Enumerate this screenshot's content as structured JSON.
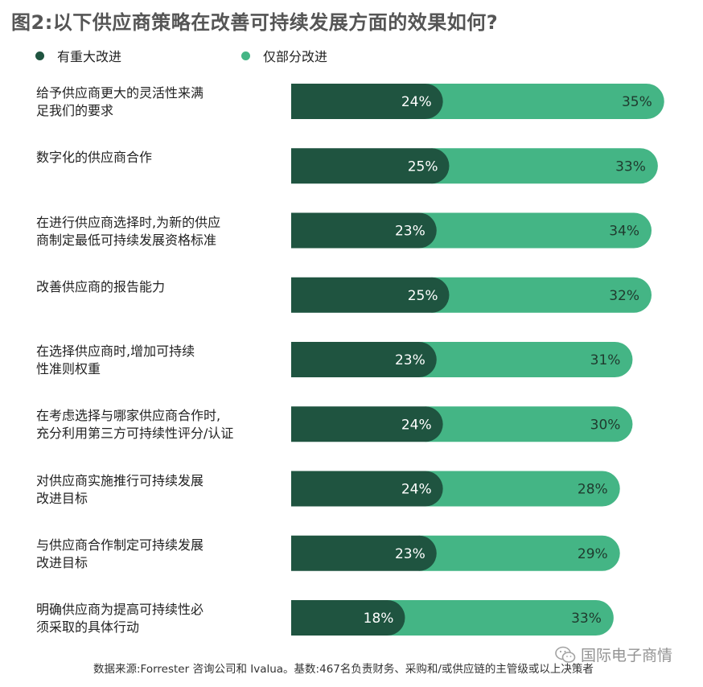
{
  "chart_data": {
    "type": "bar",
    "stacked": true,
    "orientation": "horizontal",
    "title": "图2:以下供应商策略在改善可持续发展方面的效果如何?",
    "categories": [
      [
        "给予供应商更大的灵活性来满",
        "足我们的要求"
      ],
      [
        "数字化的供应商合作"
      ],
      [
        "在进行供应商选择时,为新的供应",
        "商制定最低可持续发展资格标准"
      ],
      [
        "改善供应商的报告能力"
      ],
      [
        "在选择供应商时,增加可持续",
        "性准则权重"
      ],
      [
        "在考虑选择与哪家供应商合作时,",
        "充分利用第三方可持续性评分/认证"
      ],
      [
        "对供应商实施推行可持续发展",
        "改进目标"
      ],
      [
        "与供应商合作制定可持续发展",
        "改进目标"
      ],
      [
        "明确供应商为提高可持续性必",
        "须采取的具体行动"
      ]
    ],
    "series": [
      {
        "name": "有重大改进",
        "color": "#1f5440",
        "values": [
          24,
          25,
          23,
          25,
          23,
          24,
          24,
          23,
          18
        ]
      },
      {
        "name": "仅部分改进",
        "color": "#44b585",
        "values": [
          35,
          33,
          34,
          32,
          31,
          30,
          28,
          29,
          33
        ]
      }
    ],
    "value_suffix": "%",
    "legend_position": "top-left",
    "grid": false
  },
  "source": "数据来源:Forrester 咨询公司和 Ivalua。基数:467名负责财务、采购和/或供应链的主管级或以上决策者",
  "watermark": "国际电子商情",
  "colors": {
    "text": "#222222",
    "title": "#555555"
  }
}
